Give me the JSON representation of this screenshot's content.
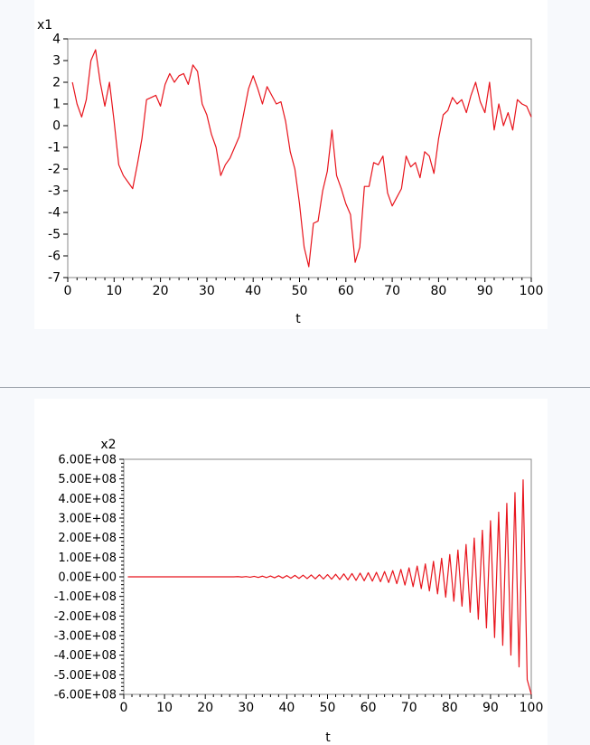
{
  "chart_data": [
    {
      "type": "line",
      "title": "",
      "ylabel": "x1",
      "xlabel": "t",
      "xlim": [
        0,
        100
      ],
      "ylim": [
        -7,
        4
      ],
      "xticks": [
        0,
        10,
        20,
        30,
        40,
        50,
        60,
        70,
        80,
        90,
        100
      ],
      "xtick_labels": [
        "0",
        "10",
        "20",
        "30",
        "40",
        "50",
        "60",
        "70",
        "80",
        "90",
        "100"
      ],
      "yticks": [
        4,
        3,
        2,
        1,
        0,
        -1,
        -2,
        -3,
        -4,
        -5,
        -6,
        -7
      ],
      "ytick_labels": [
        "4",
        "3",
        "2",
        "1",
        "0",
        "-1",
        "-2",
        "-3",
        "-4",
        "-5",
        "-6",
        "-7"
      ],
      "grid": false,
      "color": "#e8141c",
      "x": [
        1,
        2,
        3,
        4,
        5,
        6,
        7,
        8,
        9,
        10,
        11,
        12,
        13,
        14,
        15,
        16,
        17,
        18,
        19,
        20,
        21,
        22,
        23,
        24,
        25,
        26,
        27,
        28,
        29,
        30,
        31,
        32,
        33,
        34,
        35,
        36,
        37,
        38,
        39,
        40,
        41,
        42,
        43,
        44,
        45,
        46,
        47,
        48,
        49,
        50,
        51,
        52,
        53,
        54,
        55,
        56,
        57,
        58,
        59,
        60,
        61,
        62,
        63,
        64,
        65,
        66,
        67,
        68,
        69,
        70,
        71,
        72,
        73,
        74,
        75,
        76,
        77,
        78,
        79,
        80,
        81,
        82,
        83,
        84,
        85,
        86,
        87,
        88,
        89,
        90,
        91,
        92,
        93,
        94,
        95,
        96,
        97,
        98,
        99,
        100
      ],
      "y": [
        2.0,
        1.0,
        0.4,
        1.2,
        3.0,
        3.5,
        2.0,
        0.9,
        2.0,
        0.2,
        -1.8,
        -2.3,
        -2.6,
        -2.9,
        -1.8,
        -0.6,
        1.2,
        1.3,
        1.4,
        0.9,
        1.9,
        2.4,
        2.0,
        2.3,
        2.4,
        1.9,
        2.8,
        2.5,
        1.0,
        0.5,
        -0.4,
        -1.0,
        -2.3,
        -1.8,
        -1.5,
        -1.0,
        -0.5,
        0.6,
        1.7,
        2.3,
        1.7,
        1.0,
        1.8,
        1.4,
        1.0,
        1.1,
        0.2,
        -1.2,
        -2.0,
        -3.6,
        -5.6,
        -6.5,
        -4.5,
        -4.4,
        -3.0,
        -2.1,
        -0.2,
        -2.3,
        -2.9,
        -3.6,
        -4.1,
        -6.3,
        -5.6,
        -2.8,
        -2.8,
        -1.7,
        -1.8,
        -1.4,
        -3.1,
        -3.7,
        -3.3,
        -2.9,
        -1.4,
        -1.9,
        -1.7,
        -2.4,
        -1.2,
        -1.4,
        -2.2,
        -0.6,
        0.5,
        0.7,
        1.3,
        1.0,
        1.2,
        0.6,
        1.4,
        2.0,
        1.1,
        0.6,
        2.0,
        -0.2,
        1.0,
        0.0,
        0.6,
        -0.2,
        1.2,
        1.0,
        0.9,
        0.4
      ]
    },
    {
      "type": "line",
      "title": "",
      "ylabel": "x2",
      "xlabel": "t",
      "xlim": [
        0,
        100
      ],
      "ylim": [
        -600000000,
        600000000
      ],
      "xticks": [
        0,
        10,
        20,
        30,
        40,
        50,
        60,
        70,
        80,
        90,
        100
      ],
      "xtick_labels": [
        "0",
        "10",
        "20",
        "30",
        "40",
        "50",
        "60",
        "70",
        "80",
        "90",
        "100"
      ],
      "yticks": [
        600000000,
        500000000,
        400000000,
        300000000,
        200000000,
        100000000,
        0,
        -100000000,
        -200000000,
        -300000000,
        -400000000,
        -500000000,
        -600000000
      ],
      "ytick_labels": [
        "6.00E+08",
        "5.00E+08",
        "4.00E+08",
        "3.00E+08",
        "2.00E+08",
        "1.00E+08",
        "0.00E+00",
        "-1.00E+08",
        "-2.00E+08",
        "-3.00E+08",
        "-4.00E+08",
        "-5.00E+08",
        "-6.00E+08"
      ],
      "grid": false,
      "color": "#e8141c",
      "x": [
        1,
        2,
        3,
        4,
        5,
        6,
        7,
        8,
        9,
        10,
        11,
        12,
        13,
        14,
        15,
        16,
        17,
        18,
        19,
        20,
        21,
        22,
        23,
        24,
        25,
        26,
        27,
        28,
        29,
        30,
        31,
        32,
        33,
        34,
        35,
        36,
        37,
        38,
        39,
        40,
        41,
        42,
        43,
        44,
        45,
        46,
        47,
        48,
        49,
        50,
        51,
        52,
        53,
        54,
        55,
        56,
        57,
        58,
        59,
        60,
        61,
        62,
        63,
        64,
        65,
        66,
        67,
        68,
        69,
        70,
        71,
        72,
        73,
        74,
        75,
        76,
        77,
        78,
        79,
        80,
        81,
        82,
        83,
        84,
        85,
        86,
        87,
        88,
        89,
        90,
        91,
        92,
        93,
        94,
        95,
        96,
        97,
        98,
        99,
        100
      ],
      "y": [
        0,
        0,
        0,
        0,
        0,
        0,
        0,
        0,
        0,
        0,
        0,
        0,
        0,
        0,
        0,
        0,
        0,
        0,
        0,
        0,
        0,
        0,
        0,
        0,
        0,
        0,
        0,
        1000000,
        -1000000,
        1500000,
        -2000000,
        2500000,
        -3000000,
        3500000,
        -4000000,
        4500000,
        -5000000,
        5500000,
        -6000000,
        6500000,
        -7000000,
        7500000,
        -8000000,
        8500000,
        -9000000,
        9500000,
        -10000000,
        10500000,
        -11000000,
        11500000,
        -12000000,
        13000000,
        -14000000,
        15000000,
        -16000000,
        17000000,
        -18000000,
        19000000,
        -20000000,
        21000000,
        -22000000,
        23000000,
        -25000000,
        27000000,
        -29000000,
        32000000,
        -35000000,
        38000000,
        -42000000,
        46000000,
        -50000000,
        55000000,
        -60000000,
        66000000,
        -72000000,
        79000000,
        -87000000,
        95000000,
        -104000000,
        114000000,
        -125000000,
        137000000,
        -150000000,
        165000000,
        -181000000,
        198000000,
        -217000000,
        238000000,
        -261000000,
        286000000,
        -310000000,
        330000000,
        -350000000,
        375000000,
        -400000000,
        430000000,
        -460000000,
        495000000,
        -525000000,
        -600000000
      ]
    }
  ]
}
